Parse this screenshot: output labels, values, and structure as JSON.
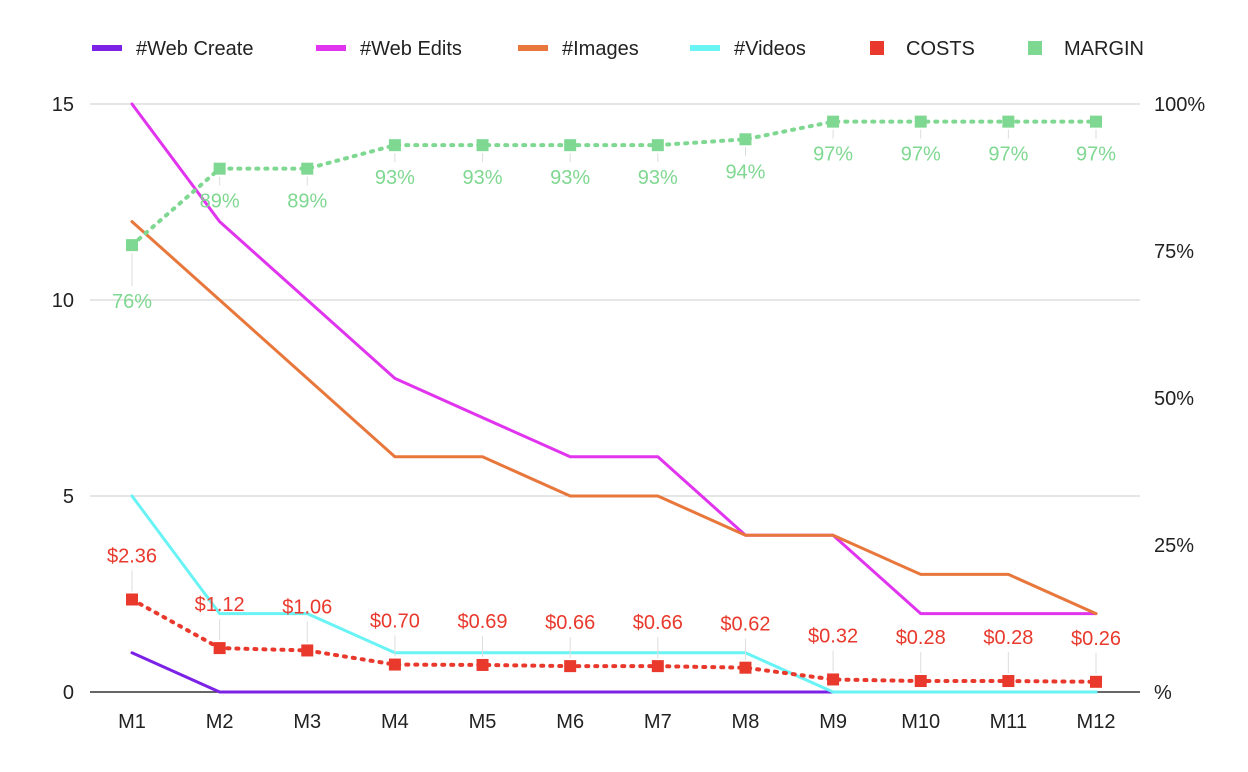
{
  "chart_data": {
    "type": "line",
    "categories": [
      "M1",
      "M2",
      "M3",
      "M4",
      "M5",
      "M6",
      "M7",
      "M8",
      "M9",
      "M10",
      "M11",
      "M12"
    ],
    "left_axis": {
      "ylim": [
        0,
        15
      ],
      "ticks": [
        0,
        5,
        10,
        15
      ],
      "tick_labels": [
        "0",
        "5",
        "10",
        "15"
      ]
    },
    "right_axis": {
      "ylim": [
        0,
        100
      ],
      "ticks": [
        0,
        25,
        50,
        75,
        100
      ],
      "tick_labels": [
        "%",
        "25%",
        "50%",
        "75%",
        "100%"
      ]
    },
    "grid": true,
    "legend_position": "top",
    "series": [
      {
        "name": "#Web Create",
        "axis": "left",
        "style": "line",
        "color": "#7b22e6",
        "values": [
          1,
          0,
          0,
          0,
          0,
          0,
          0,
          0,
          0,
          0,
          0,
          0
        ]
      },
      {
        "name": "#Web Edits",
        "axis": "left",
        "style": "line",
        "color": "#e034ee",
        "values": [
          15,
          12,
          10,
          8,
          7,
          6,
          6,
          4,
          4,
          2,
          2,
          2
        ]
      },
      {
        "name": "#Images",
        "axis": "left",
        "style": "line",
        "color": "#e8773c",
        "values": [
          12,
          10,
          8,
          6,
          6,
          5,
          5,
          4,
          4,
          3,
          3,
          2
        ]
      },
      {
        "name": "#Videos",
        "axis": "left",
        "style": "line",
        "color": "#6af3f5",
        "values": [
          5,
          2,
          2,
          1,
          1,
          1,
          1,
          1,
          0,
          0,
          0,
          0
        ]
      },
      {
        "name": "COSTS",
        "axis": "left",
        "style": "dotted-markers",
        "color": "#e8392c",
        "values": [
          2.36,
          1.12,
          1.06,
          0.7,
          0.69,
          0.66,
          0.66,
          0.62,
          0.32,
          0.28,
          0.28,
          0.26
        ],
        "labels": [
          "$2.36",
          "$1.12",
          "$1.06",
          "$0.70",
          "$0.69",
          "$0.66",
          "$0.66",
          "$0.62",
          "$0.32",
          "$0.28",
          "$0.28",
          "$0.26"
        ]
      },
      {
        "name": "MARGIN",
        "axis": "right",
        "style": "dotted-markers",
        "color": "#7fd891",
        "values": [
          76,
          89,
          89,
          93,
          93,
          93,
          93,
          94,
          97,
          97,
          97,
          97
        ],
        "labels": [
          "76%",
          "89%",
          "89%",
          "93%",
          "93%",
          "93%",
          "93%",
          "94%",
          "97%",
          "97%",
          "97%",
          "97%"
        ]
      }
    ]
  }
}
